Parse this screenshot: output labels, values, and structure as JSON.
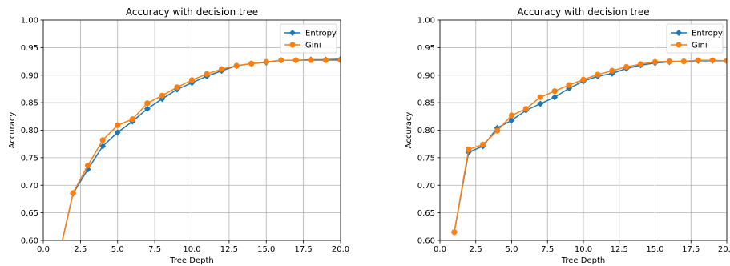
{
  "chart_data": [
    {
      "type": "line",
      "title": "Accuracy with decision tree",
      "xlabel": "Tree Depth",
      "ylabel": "Accuracy",
      "xlim": [
        0.0,
        20.0
      ],
      "ylim": [
        0.6,
        1.0
      ],
      "xticks": [
        "0.0",
        "2.5",
        "5.0",
        "7.5",
        "10.0",
        "12.5",
        "15.0",
        "17.5",
        "20.0"
      ],
      "yticks": [
        "0.60",
        "0.65",
        "0.70",
        "0.75",
        "0.80",
        "0.85",
        "0.90",
        "0.95",
        "1.00"
      ],
      "grid": true,
      "legend_position": "top-right",
      "x": [
        1,
        2,
        3,
        4,
        5,
        6,
        7,
        8,
        9,
        10,
        11,
        12,
        13,
        14,
        15,
        16,
        17,
        18,
        19,
        20
      ],
      "series": [
        {
          "name": "Entropy",
          "color": "#1f77b4",
          "marker": "diamond",
          "values": [
            0.566,
            0.685,
            0.729,
            0.771,
            0.796,
            0.816,
            0.839,
            0.857,
            0.874,
            0.886,
            0.898,
            0.908,
            0.917,
            0.921,
            0.923,
            0.927,
            0.927,
            0.928,
            0.928,
            0.929
          ]
        },
        {
          "name": "Gini",
          "color": "#ff7f0e",
          "marker": "circle",
          "values": [
            0.566,
            0.686,
            0.736,
            0.782,
            0.809,
            0.82,
            0.849,
            0.863,
            0.878,
            0.891,
            0.902,
            0.911,
            0.917,
            0.921,
            0.924,
            0.927,
            0.927,
            0.927,
            0.927,
            0.927
          ]
        }
      ]
    },
    {
      "type": "line",
      "title": "Accuracy with decision tree",
      "xlabel": "Tree Depth",
      "ylabel": "Accuracy",
      "xlim": [
        0.0,
        20.0
      ],
      "ylim": [
        0.6,
        1.0
      ],
      "xticks": [
        "0.0",
        "2.5",
        "5.0",
        "7.5",
        "10.0",
        "12.5",
        "15.0",
        "17.5",
        "20.0"
      ],
      "yticks": [
        "0.60",
        "0.65",
        "0.70",
        "0.75",
        "0.80",
        "0.85",
        "0.90",
        "0.95",
        "1.00"
      ],
      "grid": true,
      "legend_position": "top-right",
      "x": [
        1,
        2,
        3,
        4,
        5,
        6,
        7,
        8,
        9,
        10,
        11,
        12,
        13,
        14,
        15,
        16,
        17,
        18,
        19,
        20
      ],
      "series": [
        {
          "name": "Entropy",
          "color": "#1f77b4",
          "marker": "diamond",
          "values": [
            0.615,
            0.76,
            0.771,
            0.804,
            0.818,
            0.836,
            0.848,
            0.86,
            0.876,
            0.889,
            0.898,
            0.903,
            0.912,
            0.918,
            0.922,
            0.924,
            0.925,
            0.926,
            0.926,
            0.926
          ]
        },
        {
          "name": "Gini",
          "color": "#ff7f0e",
          "marker": "circle",
          "values": [
            0.615,
            0.765,
            0.774,
            0.799,
            0.827,
            0.839,
            0.86,
            0.871,
            0.882,
            0.892,
            0.901,
            0.908,
            0.915,
            0.92,
            0.924,
            0.925,
            0.925,
            0.927,
            0.927,
            0.926
          ]
        }
      ]
    }
  ]
}
